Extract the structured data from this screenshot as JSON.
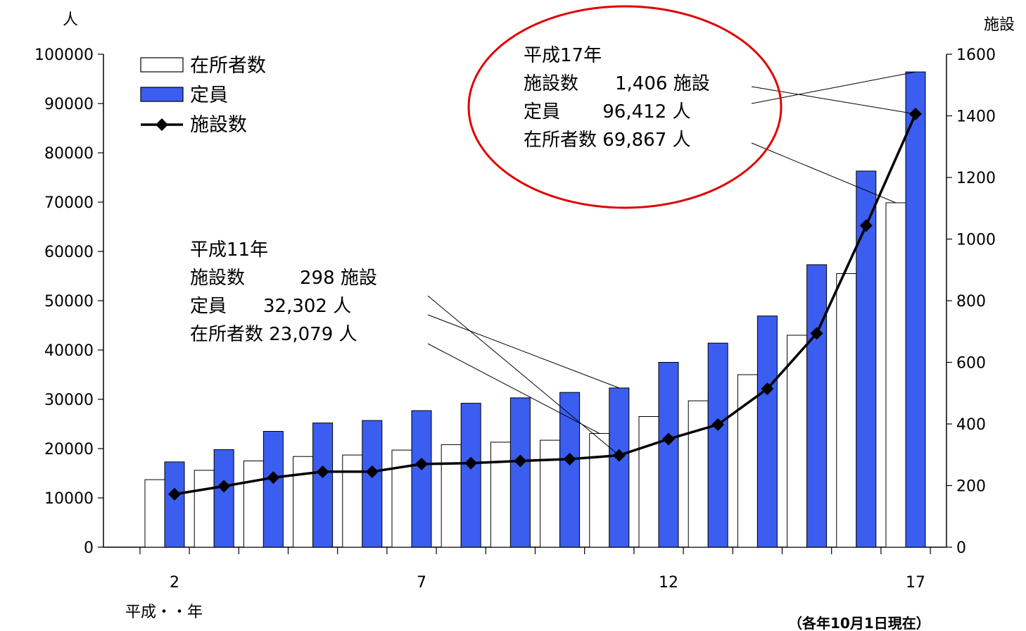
{
  "chart_data": {
    "type": "bar",
    "categories": [
      "2",
      "3",
      "4",
      "5",
      "6",
      "7",
      "8",
      "9",
      "10",
      "11",
      "12",
      "13",
      "14",
      "15",
      "16",
      "17"
    ],
    "x_tick_labels": [
      "2",
      "7",
      "12",
      "17"
    ],
    "x_tick_label_indices": [
      0,
      5,
      10,
      15
    ],
    "xlabel": "平成・・年",
    "y_left": {
      "unit": "人",
      "ylim": [
        0,
        100000
      ],
      "ticks": [
        "0",
        "10000",
        "20000",
        "30000",
        "40000",
        "50000",
        "60000",
        "70000",
        "80000",
        "90000",
        "100000"
      ]
    },
    "y_right": {
      "unit": "施設",
      "ylim": [
        0,
        1600
      ],
      "ticks": [
        "0",
        "200",
        "400",
        "600",
        "800",
        "1000",
        "1200",
        "1400",
        "1600"
      ]
    },
    "series": [
      {
        "name": "在所者数",
        "kind": "bar",
        "axis": "left",
        "color": "#ffffff",
        "values": [
          13700,
          15600,
          17500,
          18400,
          18700,
          19700,
          20800,
          21300,
          21700,
          23079,
          26500,
          29700,
          35000,
          43000,
          55500,
          69867
        ]
      },
      {
        "name": "定員",
        "kind": "bar",
        "axis": "left",
        "color": "#3b5ef0",
        "values": [
          17300,
          19800,
          23500,
          25200,
          25700,
          27700,
          29200,
          30300,
          31400,
          32302,
          37500,
          41400,
          46900,
          57300,
          76300,
          96412
        ]
      },
      {
        "name": "施設数",
        "kind": "line",
        "axis": "right",
        "color": "#000000",
        "values": [
          172,
          198,
          226,
          245,
          245,
          270,
          273,
          280,
          286,
          298,
          351,
          398,
          514,
          694,
          1044,
          1406
        ]
      }
    ],
    "annotations": [
      {
        "lines": [
          "平成11年",
          "施設数　　　298 施設",
          "定員　　32,302 人",
          "在所者数 23,079 人"
        ]
      },
      {
        "lines": [
          "平成17年",
          "施設数　　1,406 施設",
          "定員　　 96,412 人",
          "在所者数 69,867 人"
        ]
      }
    ],
    "footnote": "（各年10月1日現在）"
  }
}
